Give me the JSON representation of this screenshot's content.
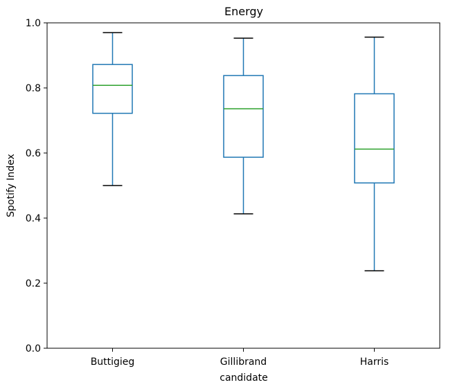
{
  "chart_data": {
    "type": "box",
    "title": "Energy",
    "xlabel": "candidate",
    "ylabel": "Spotify Index",
    "ylim": [
      0.0,
      1.0
    ],
    "y_ticks": [
      "0.0",
      "0.2",
      "0.4",
      "0.6",
      "0.8",
      "1.0"
    ],
    "grid": false,
    "categories": [
      "Buttigieg",
      "Gillibrand",
      "Harris"
    ],
    "boxes": [
      {
        "category": "Buttigieg",
        "whisker_low": 0.5,
        "q1": 0.722,
        "median": 0.808,
        "q3": 0.872,
        "whisker_high": 0.97
      },
      {
        "category": "Gillibrand",
        "whisker_low": 0.413,
        "q1": 0.587,
        "median": 0.736,
        "q3": 0.838,
        "whisker_high": 0.953
      },
      {
        "category": "Harris",
        "whisker_low": 0.238,
        "q1": 0.508,
        "median": 0.612,
        "q3": 0.782,
        "whisker_high": 0.956
      }
    ],
    "colors": {
      "box": "#1f77b4",
      "median": "#2ca02c",
      "whisker": "#1f77b4",
      "cap": "#000000",
      "axes": "#000000"
    }
  }
}
